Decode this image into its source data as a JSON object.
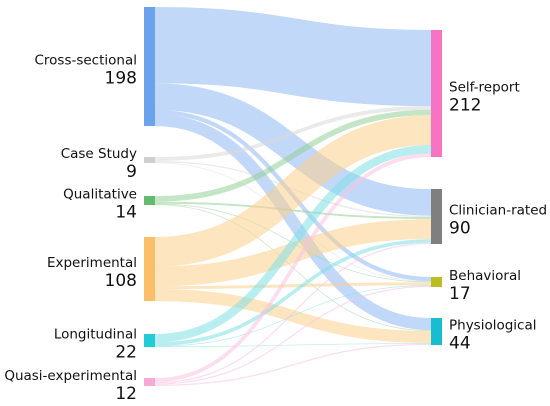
{
  "chart_data": {
    "type": "sankey",
    "sources": [
      {
        "id": "cross",
        "name": "Cross-sectional",
        "value": "198",
        "color": "#6aa3ec",
        "link_color": "#8fb8f2"
      },
      {
        "id": "case",
        "name": "Case Study",
        "value": "9",
        "color": "#cfcfcf",
        "link_color": "#d9d9d9"
      },
      {
        "id": "qual",
        "name": "Qualitative",
        "value": "14",
        "color": "#63bb6d",
        "link_color": "#93cf98"
      },
      {
        "id": "exp",
        "name": "Experimental",
        "value": "108",
        "color": "#fbbf68",
        "link_color": "#fcd08d"
      },
      {
        "id": "long",
        "name": "Longitudinal",
        "value": "22",
        "color": "#22ccd6",
        "link_color": "#7fe0e6"
      },
      {
        "id": "quasi",
        "name": "Quasi-experimental",
        "value": "12",
        "color": "#f7a9d3",
        "link_color": "#f9c2e0"
      }
    ],
    "targets": [
      {
        "id": "self",
        "name": "Self-report",
        "value": "212",
        "color": "#f774c3"
      },
      {
        "id": "clin",
        "name": "Clinician-rated",
        "value": "90",
        "color": "#7f7f7f"
      },
      {
        "id": "behav",
        "name": "Behavioral",
        "value": "17",
        "color": "#bcbd22"
      },
      {
        "id": "phys",
        "name": "Physiological",
        "value": "44",
        "color": "#17becf"
      }
    ],
    "links": [
      {
        "source": "cross",
        "target": "self",
        "value": 127
      },
      {
        "source": "cross",
        "target": "clin",
        "value": 44
      },
      {
        "source": "cross",
        "target": "behav",
        "value": 7
      },
      {
        "source": "cross",
        "target": "phys",
        "value": 20
      },
      {
        "source": "case",
        "target": "self",
        "value": 6
      },
      {
        "source": "case",
        "target": "clin",
        "value": 2
      },
      {
        "source": "case",
        "target": "behav",
        "value": 1
      },
      {
        "source": "qual",
        "target": "self",
        "value": 9
      },
      {
        "source": "qual",
        "target": "clin",
        "value": 3
      },
      {
        "source": "qual",
        "target": "behav",
        "value": 1
      },
      {
        "source": "qual",
        "target": "phys",
        "value": 1
      },
      {
        "source": "exp",
        "target": "self",
        "value": 50
      },
      {
        "source": "exp",
        "target": "clin",
        "value": 33
      },
      {
        "source": "exp",
        "target": "behav",
        "value": 5
      },
      {
        "source": "exp",
        "target": "phys",
        "value": 20
      },
      {
        "source": "long",
        "target": "self",
        "value": 14
      },
      {
        "source": "long",
        "target": "clin",
        "value": 6
      },
      {
        "source": "long",
        "target": "behav",
        "value": 1
      },
      {
        "source": "long",
        "target": "phys",
        "value": 1
      },
      {
        "source": "quasi",
        "target": "self",
        "value": 6
      },
      {
        "source": "quasi",
        "target": "clin",
        "value": 2
      },
      {
        "source": "quasi",
        "target": "behav",
        "value": 2
      },
      {
        "source": "quasi",
        "target": "phys",
        "value": 2
      }
    ]
  }
}
